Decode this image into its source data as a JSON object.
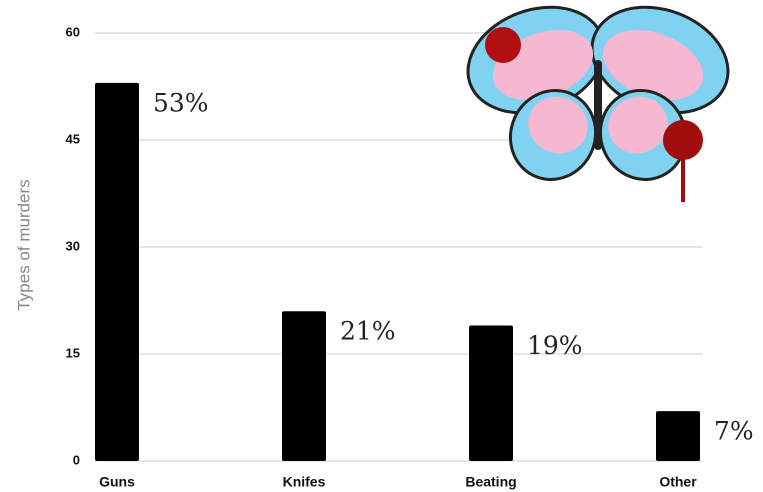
{
  "chart_data": {
    "type": "bar",
    "y_label": "Types of murders",
    "categories": [
      "Guns",
      "Knifes",
      "Beating",
      "Other"
    ],
    "values": [
      53,
      21,
      19,
      7
    ],
    "value_labels": [
      "53%",
      "21%",
      "19%",
      "7%"
    ],
    "color": "#000000",
    "ylim": [
      0,
      60
    ],
    "yticks": [
      0,
      15,
      30,
      45,
      60
    ],
    "grid": true
  }
}
